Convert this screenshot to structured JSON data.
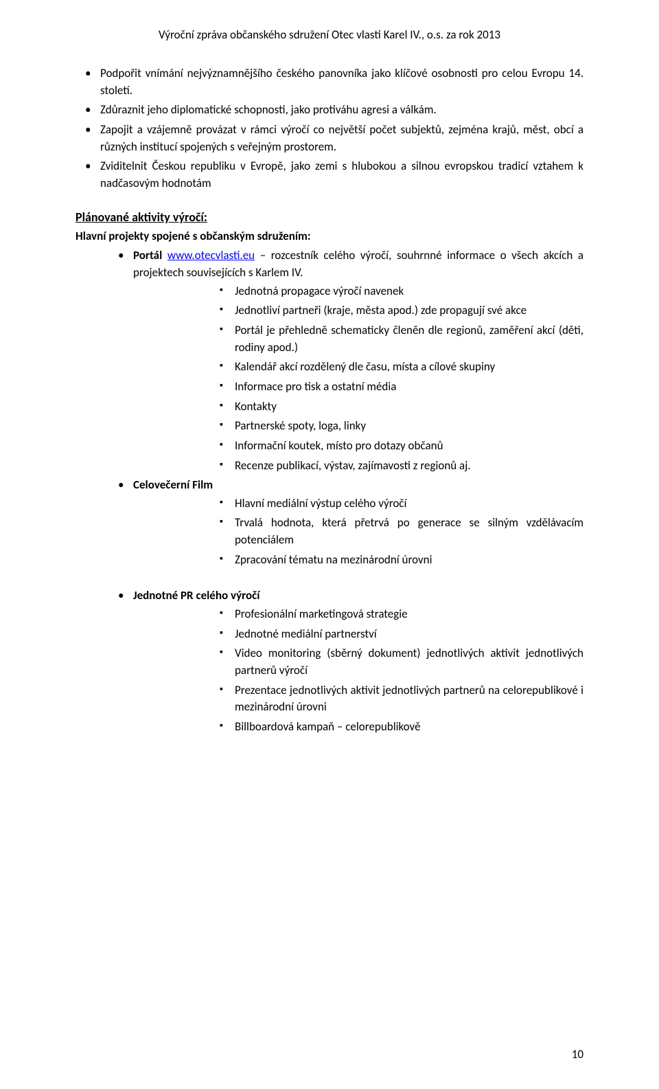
{
  "header": "Výroční zpráva občanského sdružení Otec vlasti Karel IV., o.s. za rok 2013",
  "goals": [
    "Podpořit vnímání nejvýznamnějšího českého panovníka jako klíčové osobnosti pro celou Evropu 14. století.",
    "Zdůraznit jeho diplomatické schopnosti, jako protiváhu agresi a válkám.",
    "Zapojit a vzájemně provázat v rámci výročí co největší počet subjektů, zejména krajů, měst, obcí a různých institucí spojených s veřejným prostorem.",
    "Zviditelnit Českou republiku v Evropě, jako zemi s hlubokou a silnou evropskou tradicí vztahem k nadčasovým hodnotám"
  ],
  "section_title": "Plánované aktivity výročí:",
  "subsection": "Hlavní projekty spojené s občanským sdružením:",
  "portal": {
    "label_prefix": "Portál ",
    "link": "www.otecvlasti.eu",
    "label_suffix": " – rozcestník celého výročí, souhrnné informace o všech akcích a projektech souvisejících s Karlem IV.",
    "items": [
      "Jednotná propagace výročí navenek",
      "Jednotliví partneři (kraje, města apod.) zde propagují své akce",
      "Portál je přehledně schematicky členěn dle regionů, zaměření akcí (děti, rodiny apod.)",
      "Kalendář akcí rozdělený dle času, místa a cílové skupiny",
      "Informace pro tisk a ostatní média",
      "Kontakty",
      "Partnerské spoty, loga, linky",
      "Informační koutek, místo pro dotazy občanů",
      "Recenze publikací, výstav, zajímavosti z regionů aj."
    ]
  },
  "film": {
    "label": "Celovečerní Film",
    "items": [
      "Hlavní mediální výstup celého výročí",
      "Trvalá hodnota, která přetrvá po generace se silným vzdělávacím potenciálem",
      "Zpracování tématu na mezinárodní úrovni"
    ]
  },
  "pr": {
    "label": "Jednotné PR celého výročí",
    "items": [
      "Profesionální marketingová strategie",
      "Jednotné mediální partnerství",
      "Video monitoring (sběrný dokument) jednotlivých aktivit jednotlivých partnerů výročí",
      "Prezentace jednotlivých aktivit jednotlivých partnerů na celorepublikové i mezinárodní úrovni",
      "Billboardová kampaň – celorepublikově"
    ]
  },
  "page_number": "10"
}
